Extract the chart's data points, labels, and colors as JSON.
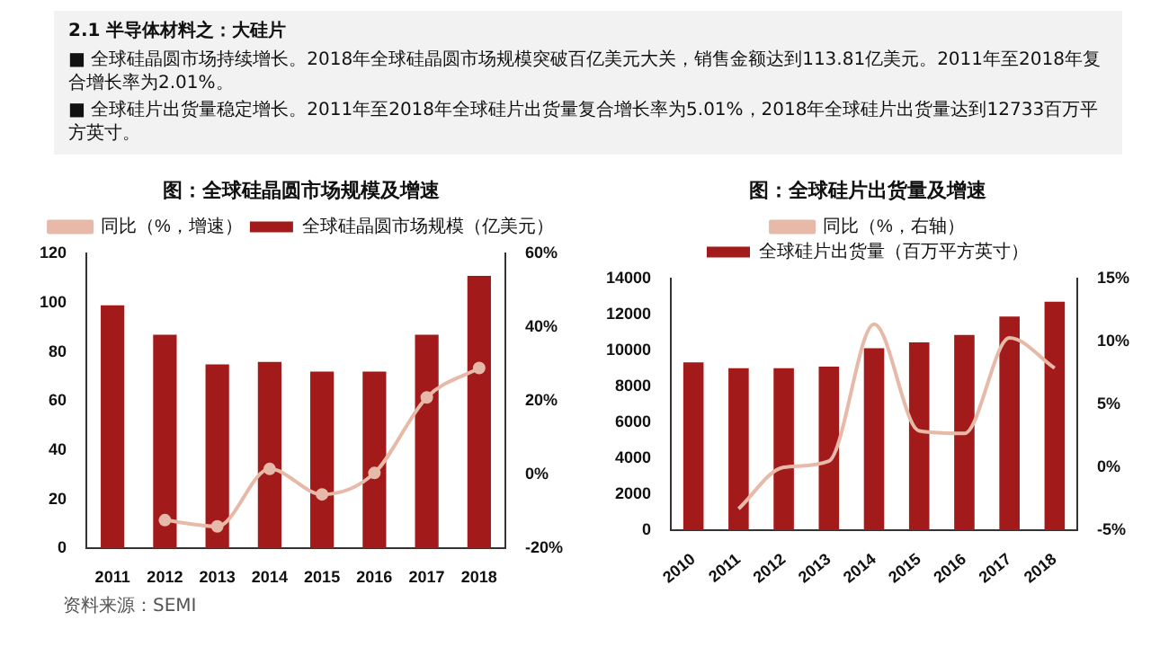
{
  "chart_data": [
    {
      "type": "other",
      "title": "2.1 半导体材料之：大硅片",
      "annotations": [
        "■ 全球硅晶圆市场持续增长。2018年全球硅晶圆市场规模突破百亿美元大关，销售金额达到113.81亿美元。2011年至2018年复合增长率为2.01%。",
        "■ 全球硅片出货量稳定增长。2011年至2018年全球硅片出货量复合增长率为5.01%，2018年全球硅片出货量达到12733百万平方英寸。"
      ]
    },
    {
      "type": "bar",
      "title": "图：全球硅晶圆市场规模及增速",
      "categories": [
        "2011",
        "2012",
        "2013",
        "2014",
        "2015",
        "2016",
        "2017",
        "2018"
      ],
      "series": [
        {
          "name": "全球硅晶圆市场规模（亿美元）",
          "color": "#a31a1a",
          "values": [
            99,
            87,
            75,
            76,
            72,
            72,
            87,
            111
          ]
        },
        {
          "name": "同比（%，增速）",
          "type": "line",
          "axis": "y2",
          "color": "#e6b9a8",
          "marker": "circle",
          "values": [
            null,
            -12.3,
            -14,
            1.6,
            -5.3,
            0.5,
            21,
            29
          ]
        }
      ],
      "ylim": [
        0,
        120
      ],
      "yticks": [
        0,
        20,
        40,
        60,
        80,
        100,
        120
      ],
      "y2lim": [
        -20,
        60
      ],
      "y2ticks": [
        {
          "value": -20,
          "label": "-20%"
        },
        {
          "value": 0,
          "label": "0%"
        },
        {
          "value": 20,
          "label": "20%"
        },
        {
          "value": 40,
          "label": "40%"
        },
        {
          "value": 60,
          "label": "60%"
        }
      ],
      "legend": "top",
      "annotations": [
        "资料来源：SEMI"
      ]
    },
    {
      "type": "bar",
      "title": "图：全球硅片出货量及增速",
      "categories": [
        "2010",
        "2011",
        "2012",
        "2013",
        "2014",
        "2015",
        "2016",
        "2017",
        "2018"
      ],
      "series": [
        {
          "name": "全球硅片出货量（百万平方英寸）",
          "color": "#a31a1a",
          "values": [
            9350,
            9020,
            9020,
            9110,
            10140,
            10470,
            10880,
            11900,
            12730
          ]
        },
        {
          "name": "同比（%，右轴）",
          "type": "line",
          "axis": "y2",
          "color": "#e6b9a8",
          "marker": "none",
          "values": [
            null,
            -3.3,
            0,
            0.5,
            11.4,
            2.9,
            2.7,
            10.3,
            7.9
          ]
        }
      ],
      "ylim": [
        0,
        14000
      ],
      "yticks": [
        0,
        2000,
        4000,
        6000,
        8000,
        10000,
        12000,
        14000
      ],
      "y2lim": [
        -5,
        15
      ],
      "y2ticks": [
        {
          "value": -5,
          "label": "-5%"
        },
        {
          "value": 0,
          "label": "0%"
        },
        {
          "value": 5,
          "label": "5%"
        },
        {
          "value": 10,
          "label": "10%"
        },
        {
          "value": 15,
          "label": "15%"
        }
      ],
      "legend": "top"
    }
  ]
}
